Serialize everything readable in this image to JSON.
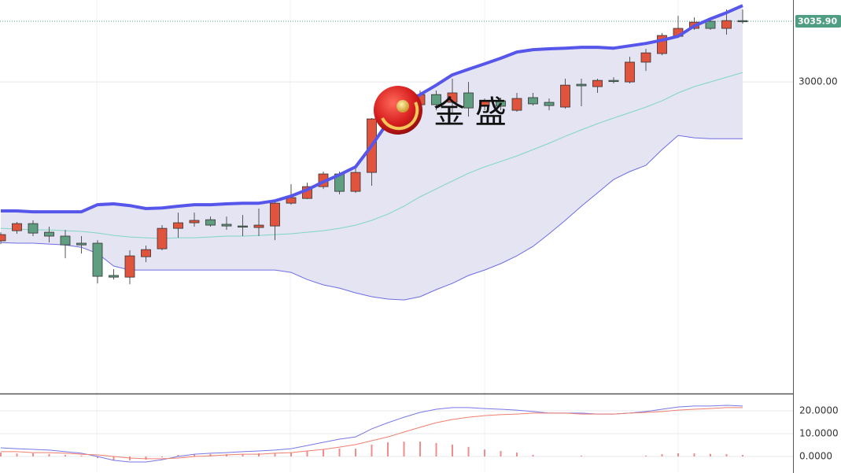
{
  "watermark": "金 盛",
  "chart_data": [
    {
      "type": "candlestick",
      "up_color": "#e0533d",
      "down_color": "#5f9e80",
      "outline_color": "#333333",
      "open": [
        2905.9,
        2911.9,
        2916.1,
        2911.0,
        2908.7,
        2904.5,
        2904.5,
        2885.4,
        2884.4,
        2896.5,
        2901.2,
        2913.3,
        2916.6,
        2918.4,
        2915.7,
        2914.7,
        2913.8,
        2914.7,
        2928.2,
        2931.0,
        2938.0,
        2945.5,
        2935.2,
        2946.4,
        2978.1,
        2983.2,
        2986.5,
        2992.5,
        2987.9,
        2993.5,
        2985.6,
        2988.8,
        2983.2,
        2990.7,
        2987.9,
        2985.1,
        2998.6,
        2997.2,
        3000.9,
        3000.0,
        3011.7,
        3016.8,
        3027.0,
        3031.7,
        3035.9,
        3031.7,
        3036.3
      ],
      "high": [
        2911.0,
        2917.1,
        2918.0,
        2914.3,
        2912.4,
        2908.7,
        2906.3,
        2889.1,
        2900.3,
        2903.1,
        2915.2,
        2922.6,
        2922.6,
        2920.3,
        2920.3,
        2921.2,
        2925.0,
        2929.6,
        2939.4,
        2940.4,
        2946.9,
        2946.9,
        2948.7,
        2978.6,
        2988.8,
        2992.5,
        2994.9,
        2994.9,
        3001.9,
        3000.0,
        2990.2,
        2990.7,
        2993.5,
        2993.5,
        2990.2,
        3001.9,
        3001.9,
        3001.9,
        3002.8,
        3014.9,
        3019.6,
        3028.9,
        3039.1,
        3038.2,
        3038.2,
        3042.9,
        3042.9
      ],
      "low": [
        2904.0,
        2910.1,
        2908.7,
        2904.9,
        2895.6,
        2898.4,
        2880.7,
        2883.0,
        2880.2,
        2893.3,
        2900.3,
        2907.7,
        2914.3,
        2914.3,
        2912.4,
        2908.7,
        2908.7,
        2906.3,
        2927.3,
        2930.6,
        2936.6,
        2933.4,
        2934.3,
        2938.5,
        2977.6,
        2980.9,
        2983.2,
        2983.2,
        2980.9,
        2979.5,
        2983.2,
        2983.2,
        2982.3,
        2986.0,
        2983.2,
        2984.2,
        2985.6,
        2993.5,
        2999.1,
        2999.1,
        3006.5,
        3015.8,
        3026.1,
        3030.8,
        3030.8,
        3028.0,
        3034.5
      ],
      "close": [
        2909.6,
        2916.1,
        2910.5,
        2908.7,
        2903.5,
        2903.5,
        2884.9,
        2884.4,
        2897.0,
        2900.7,
        2913.3,
        2916.6,
        2918.0,
        2915.2,
        2914.7,
        2914.3,
        2915.2,
        2928.2,
        2931.5,
        2938.0,
        2945.5,
        2935.2,
        2946.4,
        2978.1,
        2985.6,
        2990.2,
        2992.5,
        2986.5,
        2993.5,
        2984.6,
        2988.8,
        2985.6,
        2990.2,
        2987.0,
        2986.0,
        2998.1,
        2997.7,
        3000.9,
        3000.5,
        3011.7,
        3017.2,
        3027.5,
        3031.7,
        3035.4,
        3031.7,
        3036.3,
        3035.9
      ],
      "bands": {
        "fill_color": "#e4e4f3",
        "upper": {
          "color": "#5656ea",
          "values": [
            2923.6,
            2923.6,
            2923.1,
            2923.1,
            2923.1,
            2923.1,
            2927.3,
            2927.8,
            2926.8,
            2925.0,
            2925.4,
            2926.4,
            2927.3,
            2927.3,
            2927.8,
            2928.2,
            2928.2,
            2929.6,
            2932.4,
            2936.2,
            2940.8,
            2945.0,
            2949.7,
            2962.3,
            2976.2,
            2985.6,
            2992.5,
            2998.1,
            3004.2,
            3007.5,
            3010.7,
            3014.0,
            3017.7,
            3019.1,
            3019.6,
            3020.0,
            3020.5,
            3020.5,
            3020.0,
            3021.4,
            3022.8,
            3024.7,
            3027.0,
            3033.1,
            3037.3,
            3041.0,
            3045.2
          ]
        },
        "middle": {
          "color": "#7fd6c4",
          "values": [
            2913.3,
            2912.9,
            2912.4,
            2912.4,
            2911.9,
            2911.5,
            2910.5,
            2909.1,
            2908.2,
            2907.7,
            2907.3,
            2907.7,
            2907.7,
            2908.2,
            2908.7,
            2908.7,
            2909.1,
            2909.6,
            2910.1,
            2911.0,
            2911.9,
            2913.3,
            2915.2,
            2918.0,
            2921.7,
            2926.4,
            2932.0,
            2936.6,
            2941.3,
            2945.9,
            2949.7,
            2952.9,
            2956.2,
            2959.9,
            2963.7,
            2967.8,
            2971.6,
            2975.3,
            2978.6,
            2981.8,
            2985.1,
            2988.8,
            2993.5,
            2997.2,
            3000.0,
            3002.8,
            3005.6
          ]
        },
        "lower": {
          "color": "#6d6de4",
          "values": [
            2904.9,
            2904.5,
            2904.5,
            2904.0,
            2903.5,
            2902.1,
            2898.4,
            2891.0,
            2888.6,
            2888.6,
            2888.6,
            2888.6,
            2888.6,
            2888.6,
            2888.6,
            2888.6,
            2888.6,
            2888.6,
            2887.2,
            2883.0,
            2879.8,
            2877.9,
            2875.1,
            2872.8,
            2871.4,
            2870.9,
            2872.8,
            2877.0,
            2880.7,
            2885.4,
            2888.6,
            2892.4,
            2897.0,
            2902.6,
            2910.1,
            2918.0,
            2926.4,
            2934.3,
            2942.2,
            2946.9,
            2950.6,
            2959.9,
            2968.3,
            2966.9,
            2966.4,
            2966.4,
            2966.4
          ]
        }
      },
      "ylim": [
        2815.5,
        3048.5
      ],
      "yticks": [
        {
          "value": 3000,
          "label": "3000.00"
        }
      ],
      "last_price": {
        "value": 3035.9,
        "label": "3035.90",
        "color": "#4f9e83"
      }
    },
    {
      "type": "macd",
      "lines": [
        {
          "color": "#7777e6",
          "values": [
            3.8,
            3.4,
            3.1,
            2.8,
            2.1,
            1.4,
            0,
            -1.7,
            -2.4,
            -2.4,
            -1.4,
            0,
            1.0,
            1.4,
            1.7,
            2.1,
            2.4,
            2.8,
            3.4,
            4.8,
            6.2,
            7.6,
            8.6,
            12.1,
            14.8,
            17.2,
            19.3,
            20.7,
            21.4,
            21.4,
            21.0,
            20.7,
            20.3,
            19.7,
            19.0,
            19.0,
            19.0,
            18.6,
            18.6,
            19.0,
            19.7,
            20.7,
            21.7,
            22.1,
            22.1,
            22.4,
            22.1
          ]
        },
        {
          "color": "#f07f6e",
          "values": [
            2.1,
            2.1,
            1.7,
            1.7,
            1.4,
            1.0,
            0.7,
            0,
            -0.7,
            -1.0,
            -1.0,
            -0.7,
            0,
            0.3,
            0.7,
            1.0,
            1.0,
            1.4,
            1.7,
            2.4,
            3.1,
            4.1,
            5.2,
            6.9,
            8.6,
            10.7,
            12.8,
            14.8,
            16.2,
            17.2,
            17.9,
            18.3,
            18.6,
            19.0,
            19.0,
            19.0,
            18.6,
            18.6,
            18.6,
            19.0,
            19.3,
            19.7,
            20.3,
            20.7,
            21.0,
            21.4,
            21.4
          ]
        }
      ],
      "histogram": {
        "color": "#f08c8c",
        "values": [
          1.7,
          1.3,
          1.4,
          1.1,
          0.7,
          0.4,
          -0.7,
          -1.7,
          -1.7,
          -1.4,
          -0.4,
          0.7,
          1.0,
          1.1,
          1.0,
          1.1,
          1.4,
          1.4,
          1.7,
          2.4,
          3.1,
          3.5,
          3.4,
          5.2,
          6.2,
          6.5,
          6.5,
          5.9,
          5.2,
          4.2,
          3.1,
          2.4,
          1.7,
          0.7,
          0,
          0,
          0.4,
          0,
          0,
          0,
          0.4,
          1.0,
          1.4,
          1.4,
          1.1,
          1.0,
          0.7
        ]
      },
      "ylim": [
        -6.9,
        26.9
      ],
      "yticks": [
        {
          "value": 0,
          "label": "0.0000"
        },
        {
          "value": 10,
          "label": "10.0000"
        },
        {
          "value": 20,
          "label": "20.0000"
        }
      ]
    }
  ]
}
